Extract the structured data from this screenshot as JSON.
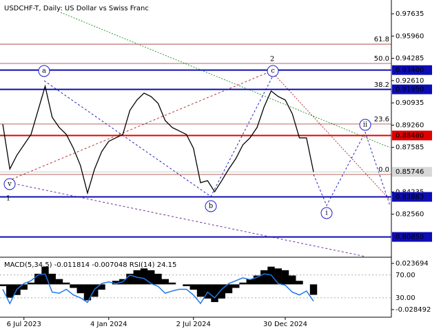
{
  "chart_data": {
    "type": "line",
    "title": "USDCHF-T, Daily:  US Dollar vs Swiss Franc",
    "categories": [
      null,
      null,
      null,
      "6 Jul 2023",
      null,
      null,
      null,
      null,
      null,
      null,
      null,
      null,
      null,
      null,
      null,
      "4 Jan 2024",
      null,
      null,
      null,
      null,
      null,
      null,
      null,
      null,
      null,
      null,
      null,
      "2 Jul 2024",
      null,
      null,
      null,
      null,
      null,
      null,
      null,
      null,
      null,
      null,
      null,
      null,
      "30 Dec 2024",
      null,
      null,
      null,
      null
    ],
    "series": [
      {
        "color": "#000000",
        "values": [
          0.8934,
          0.8596,
          0.87,
          0.8778,
          0.8856,
          0.9037,
          0.9219,
          0.8985,
          0.8908,
          0.8856,
          0.8752,
          0.8622,
          0.8415,
          0.8596,
          0.8726,
          0.8804,
          0.883,
          0.8856,
          0.9037,
          0.9115,
          0.9167,
          0.9141,
          0.9089,
          0.896,
          0.8908,
          0.8882,
          0.8856,
          0.8752,
          0.8493,
          0.8508,
          0.8425,
          0.8508,
          0.8596,
          0.8674,
          0.8778,
          0.883,
          0.8908,
          0.9063,
          0.9183,
          0.9141,
          0.9115,
          0.9011,
          0.883,
          0.883,
          0.85746
        ]
      }
    ],
    "ylim": [
      0.7948,
      0.98672
    ],
    "yticks": [
      0.97635,
      {
        "value": 0.9596,
        "label": "0.95960"
      },
      0.94285,
      {
        "value": 0.9261,
        "label": "0.92610"
      },
      0.90935,
      {
        "value": 0.8926,
        "label": "0.89260"
      },
      0.87585,
      0.84235,
      {
        "value": 0.8256,
        "label": "0.82560"
      }
    ],
    "last_price": 0.85746,
    "levels": [
      {
        "value": 0.934,
        "label": "0.93400",
        "color": "#0c0cb4"
      },
      {
        "value": 0.9195,
        "label": "0.91950",
        "color": "#0c0cb4"
      },
      {
        "value": 0.8848,
        "label": "0.88480",
        "color": "#e00000"
      },
      {
        "value": 0.83863,
        "label": "0.83863",
        "color": "#0c0cb4"
      },
      {
        "value": 0.8085,
        "label": "0.80850",
        "color": "#0c0cb4"
      }
    ],
    "fib_color": "#a03030",
    "fib_levels": [
      {
        "value": 0.9535,
        "label": "61.8"
      },
      {
        "value": 0.939,
        "label": "50.0"
      },
      {
        "value": 0.9193,
        "label": "38.2"
      },
      {
        "value": 0.8934,
        "label": "23.6"
      },
      {
        "value": 0.8555,
        "label": "0.0"
      }
    ],
    "wave_labels": [
      "a",
      "c",
      "b",
      "v",
      "ii",
      "i",
      "2",
      "1"
    ],
    "indicator_title": "MACD(5,34,5) -0.011814 -0.007048 RSI(14) 24.15",
    "macd": {
      "color": "#000000",
      "ylim": [
        -0.0371,
        0.0299
      ],
      "ticks": [
        0.023694,
        -0.028492
      ],
      "values": [
        -0.002,
        -0.015,
        -0.012,
        -0.006,
        0.002,
        0.012,
        0.02,
        0.012,
        0.006,
        0.002,
        -0.004,
        -0.01,
        -0.018,
        -0.014,
        -0.006,
        0.0,
        0.004,
        0.006,
        0.012,
        0.016,
        0.018,
        0.016,
        0.012,
        0.006,
        0.002,
        0.0,
        -0.002,
        -0.006,
        -0.014,
        -0.016,
        -0.02,
        -0.016,
        -0.01,
        -0.004,
        0.002,
        0.006,
        0.01,
        0.016,
        0.02,
        0.018,
        0.016,
        0.01,
        0.004,
        0.0,
        -0.011814
      ]
    },
    "rsi": {
      "color": "#1e78e6",
      "ylim": [
        -4,
        100
      ],
      "ticks": [
        {
          "value": 70,
          "label": "70.00"
        },
        {
          "value": 30,
          "label": "30.00"
        }
      ],
      "values": [
        45,
        20,
        45,
        55,
        60,
        70,
        72,
        40,
        38,
        45,
        35,
        30,
        22,
        45,
        55,
        58,
        55,
        58,
        70,
        66,
        64,
        55,
        50,
        38,
        42,
        45,
        45,
        35,
        20,
        40,
        30,
        45,
        55,
        60,
        65,
        62,
        66,
        72,
        70,
        55,
        52,
        40,
        35,
        42,
        24.15
      ]
    }
  }
}
